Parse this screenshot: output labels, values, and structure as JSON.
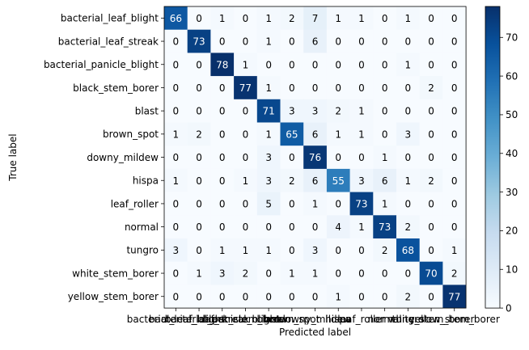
{
  "chart_data": {
    "type": "heatmap",
    "title": "",
    "xlabel": "Predicted label",
    "ylabel": "True label",
    "labels": [
      "bacterial_leaf_blight",
      "bacterial_leaf_streak",
      "bacterial_panicle_blight",
      "black_stem_borer",
      "blast",
      "brown_spot",
      "downy_mildew",
      "hispa",
      "leaf_roller",
      "normal",
      "tungro",
      "white_stem_borer",
      "yellow_stem_borer"
    ],
    "matrix": [
      [
        66,
        0,
        1,
        0,
        1,
        2,
        7,
        1,
        1,
        0,
        1,
        0,
        0
      ],
      [
        0,
        73,
        0,
        0,
        1,
        0,
        6,
        0,
        0,
        0,
        0,
        0,
        0
      ],
      [
        0,
        0,
        78,
        1,
        0,
        0,
        0,
        0,
        0,
        0,
        1,
        0,
        0
      ],
      [
        0,
        0,
        0,
        77,
        1,
        0,
        0,
        0,
        0,
        0,
        0,
        2,
        0
      ],
      [
        0,
        0,
        0,
        0,
        71,
        3,
        3,
        2,
        1,
        0,
        0,
        0,
        0
      ],
      [
        1,
        2,
        0,
        0,
        1,
        65,
        6,
        1,
        1,
        0,
        3,
        0,
        0
      ],
      [
        0,
        0,
        0,
        0,
        3,
        0,
        76,
        0,
        0,
        1,
        0,
        0,
        0
      ],
      [
        1,
        0,
        0,
        1,
        3,
        2,
        6,
        55,
        3,
        6,
        1,
        2,
        0
      ],
      [
        0,
        0,
        0,
        0,
        5,
        0,
        1,
        0,
        73,
        1,
        0,
        0,
        0
      ],
      [
        0,
        0,
        0,
        0,
        0,
        0,
        0,
        4,
        1,
        73,
        2,
        0,
        0
      ],
      [
        3,
        0,
        1,
        1,
        1,
        0,
        3,
        0,
        0,
        2,
        68,
        0,
        1
      ],
      [
        0,
        1,
        3,
        2,
        0,
        1,
        1,
        0,
        0,
        0,
        0,
        70,
        2
      ],
      [
        0,
        0,
        0,
        0,
        0,
        0,
        0,
        1,
        0,
        0,
        2,
        0,
        77
      ]
    ],
    "colormap": "Blues",
    "value_range": [
      0,
      78
    ],
    "colorbar_ticks": [
      0,
      10,
      20,
      30,
      40,
      50,
      60,
      70
    ],
    "grid": false,
    "colors": {
      "low": "#f7fbff",
      "high": "#08306b",
      "text_dark": "#000000",
      "text_light": "#ffffff"
    }
  }
}
